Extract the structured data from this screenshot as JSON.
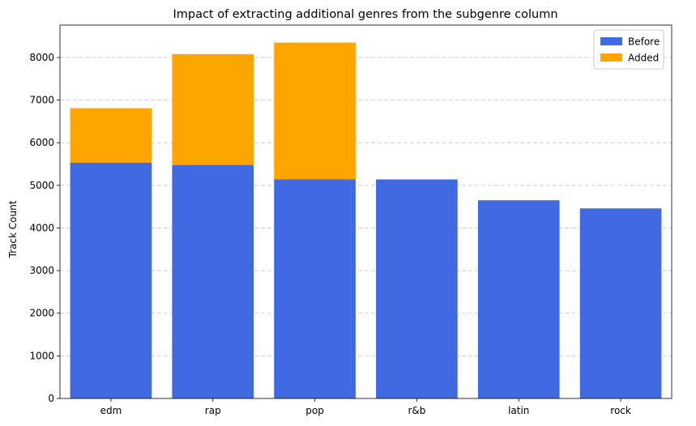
{
  "chart_data": {
    "type": "bar",
    "stacked": true,
    "title": "Impact of extracting additional genres from the subgenre column",
    "xlabel": "",
    "ylabel": "Track Count",
    "categories": [
      "edm",
      "rap",
      "pop",
      "r&b",
      "latin",
      "rock"
    ],
    "series": [
      {
        "name": "Before",
        "color": "#4169e1",
        "values": [
          5535,
          5480,
          5140,
          5140,
          4650,
          4460
        ]
      },
      {
        "name": "Added",
        "color": "#ffa500",
        "values": [
          1275,
          2600,
          3210,
          0,
          0,
          0
        ]
      }
    ],
    "ylim": [
      0,
      8760
    ],
    "yticks": [
      0,
      1000,
      2000,
      3000,
      4000,
      5000,
      6000,
      7000,
      8000
    ],
    "grid": {
      "axis": "y",
      "style": "dashed",
      "color": "#c0c0c0"
    },
    "legend": {
      "position": "top-right"
    }
  }
}
